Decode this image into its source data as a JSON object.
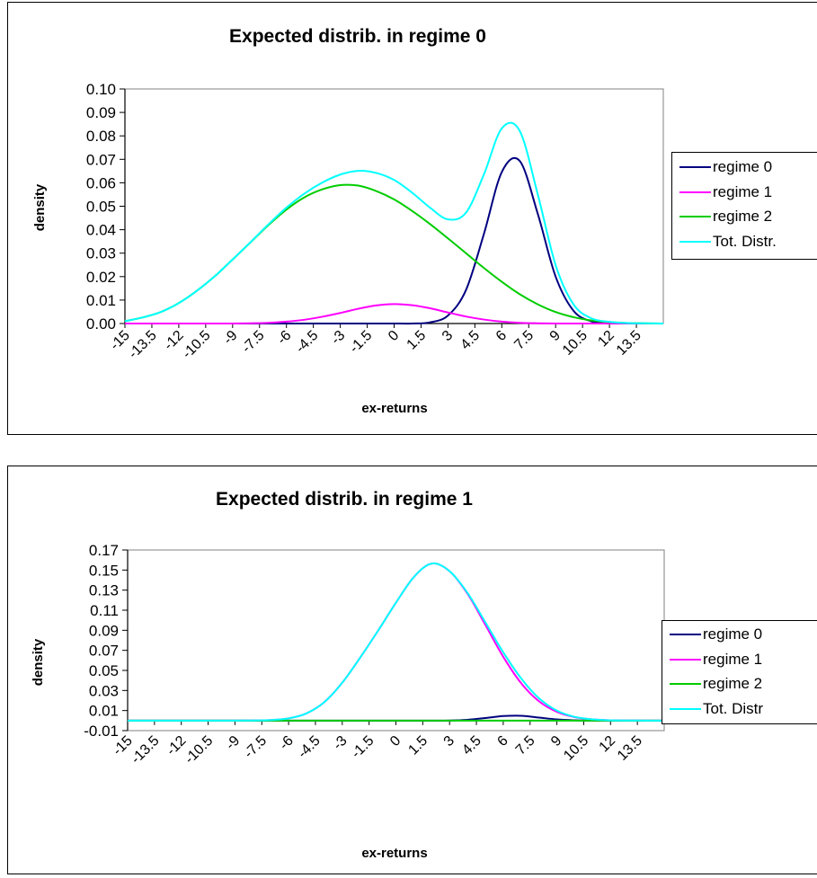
{
  "chart_data": [
    {
      "type": "line",
      "title": "Expected distrib. in regime 0",
      "xlabel": "ex-returns",
      "ylabel": "density",
      "ylim": [
        0,
        0.1
      ],
      "yticks": [
        "0.00",
        "0.01",
        "0.02",
        "0.03",
        "0.04",
        "0.05",
        "0.06",
        "0.07",
        "0.08",
        "0.09",
        "0.10"
      ],
      "categories": [
        "-15",
        "-13.5",
        "-12",
        "-10.5",
        "-9",
        "-7.5",
        "-6",
        "-4.5",
        "-3",
        "-1.5",
        "0",
        "1.5",
        "3",
        "4.5",
        "6",
        "7.5",
        "9",
        "10.5",
        "12",
        "13.5"
      ],
      "x": [
        -15,
        -14,
        -13,
        -12,
        -11,
        -10,
        -9,
        -8,
        -7,
        -6,
        -5,
        -4,
        -3,
        -2,
        -1,
        0,
        1,
        2,
        3,
        4,
        5,
        6,
        7,
        8,
        9,
        10,
        11,
        12,
        13,
        14,
        15
      ],
      "grid": false,
      "legend_position": "right",
      "series": [
        {
          "name": "regime 0",
          "color": "#000080",
          "values": [
            0,
            0,
            0,
            0,
            0,
            0,
            0,
            0,
            0,
            0,
            0,
            0,
            0,
            0,
            0,
            0,
            0,
            0.0005,
            0.0034,
            0.0142,
            0.0381,
            0.0646,
            0.0693,
            0.0469,
            0.02,
            0.0054,
            0.0009,
            0.0001,
            0,
            0,
            0
          ]
        },
        {
          "name": "regime 1",
          "color": "#FF00FF",
          "values": [
            0,
            0,
            0,
            0,
            0,
            0,
            0,
            0.0001,
            0.0003,
            0.0008,
            0.0016,
            0.0029,
            0.0045,
            0.0063,
            0.0077,
            0.0083,
            0.0078,
            0.0065,
            0.0047,
            0.003,
            0.0017,
            0.0008,
            0.0003,
            0.0001,
            0,
            0,
            0,
            0,
            0,
            0,
            0
          ]
        },
        {
          "name": "regime 2",
          "color": "#00CC00",
          "values": [
            0.001,
            0.0026,
            0.0049,
            0.0087,
            0.0139,
            0.0201,
            0.0273,
            0.0346,
            0.042,
            0.0486,
            0.0538,
            0.0572,
            0.059,
            0.0588,
            0.0565,
            0.0529,
            0.048,
            0.0424,
            0.0363,
            0.03,
            0.0237,
            0.0178,
            0.0125,
            0.0082,
            0.0049,
            0.0027,
            0.0013,
            0.0006,
            0.0002,
            0.0001,
            0
          ]
        },
        {
          "name": "Tot. Distr.",
          "color": "#00FFFF",
          "values": [
            0.001,
            0.0026,
            0.0049,
            0.0087,
            0.0139,
            0.0201,
            0.0273,
            0.0347,
            0.0423,
            0.0494,
            0.0554,
            0.0601,
            0.0635,
            0.0651,
            0.0642,
            0.0612,
            0.0558,
            0.0494,
            0.0444,
            0.0472,
            0.0635,
            0.0832,
            0.0821,
            0.0552,
            0.0249,
            0.0081,
            0.0022,
            0.0007,
            0.0002,
            0.0001,
            0
          ]
        }
      ]
    },
    {
      "type": "line",
      "title": "Expected distrib. in regime 1",
      "xlabel": "ex-returns",
      "ylabel": "density",
      "ylim": [
        -0.01,
        0.17
      ],
      "yticks": [
        "-0.01",
        "0.01",
        "0.03",
        "0.05",
        "0.07",
        "0.09",
        "0.11",
        "0.13",
        "0.15",
        "0.17"
      ],
      "categories": [
        "-15",
        "-13.5",
        "-12",
        "-10.5",
        "-9",
        "-7.5",
        "-6",
        "-4.5",
        "-3",
        "-1.5",
        "0",
        "1.5",
        "3",
        "4.5",
        "6",
        "7.5",
        "9",
        "10.5",
        "12",
        "13.5"
      ],
      "x": [
        -15,
        -14,
        -13,
        -12,
        -11,
        -10,
        -9,
        -8,
        -7,
        -6,
        -5,
        -4,
        -3,
        -2,
        -1,
        0,
        1,
        2,
        3,
        4,
        5,
        6,
        7,
        8,
        9,
        10,
        11,
        12,
        13,
        14,
        15
      ],
      "grid": false,
      "legend_position": "right",
      "series": [
        {
          "name": "regime 0",
          "color": "#000080",
          "values": [
            0,
            0,
            0,
            0,
            0,
            0,
            0,
            0,
            0,
            0,
            0,
            0,
            0,
            0,
            0,
            0,
            0,
            0,
            0.0001,
            0.0008,
            0.0025,
            0.0045,
            0.0048,
            0.003,
            0.0012,
            0.0003,
            0,
            0,
            0,
            0,
            0
          ]
        },
        {
          "name": "regime 1",
          "color": "#FF00FF",
          "values": [
            0,
            0,
            0,
            0,
            0,
            0,
            0,
            0.0001,
            0.0005,
            0.0022,
            0.0072,
            0.0184,
            0.0378,
            0.0627,
            0.0895,
            0.1174,
            0.143,
            0.1565,
            0.1488,
            0.1265,
            0.0954,
            0.0636,
            0.0373,
            0.0192,
            0.0087,
            0.0034,
            0.0012,
            0.0003,
            0.0001,
            0,
            0
          ]
        },
        {
          "name": "regime 2",
          "color": "#00CC00",
          "values": [
            0,
            0,
            0,
            0,
            0,
            0,
            0,
            0,
            0,
            0,
            0,
            0,
            0,
            0,
            0,
            0,
            0,
            0,
            0,
            0,
            0,
            0,
            0,
            0,
            0,
            0,
            0,
            0,
            0,
            0,
            0
          ]
        },
        {
          "name": "Tot. Distr",
          "color": "#00FFFF",
          "values": [
            0,
            0,
            0,
            0,
            0,
            0,
            0,
            0.0001,
            0.0005,
            0.0022,
            0.0072,
            0.0184,
            0.0378,
            0.0627,
            0.0895,
            0.1174,
            0.143,
            0.1565,
            0.1489,
            0.1273,
            0.0979,
            0.0681,
            0.0421,
            0.0222,
            0.0099,
            0.0037,
            0.0012,
            0.0003,
            0.0001,
            0,
            0
          ]
        }
      ]
    }
  ]
}
